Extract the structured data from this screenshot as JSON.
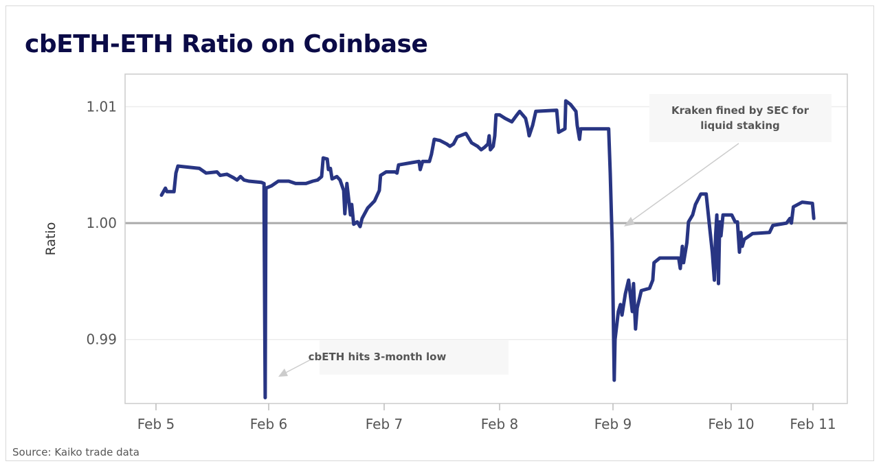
{
  "title": "cbETH-ETH Ratio on Coinbase",
  "source": "Source: Kaiko trade data",
  "chart_data": {
    "type": "line",
    "title": "cbETH-ETH Ratio on Coinbase",
    "xlabel": "",
    "ylabel": "Ratio",
    "ylim": [
      0.9845,
      1.0128
    ],
    "x_ticks": [
      "Feb 5",
      "Feb 6",
      "Feb 7",
      "Feb 8",
      "Feb 9",
      "Feb 10",
      "Feb 11"
    ],
    "y_ticks": [
      "0.99",
      "1.00",
      "1.01"
    ],
    "y_tick_values": [
      0.99,
      1.0,
      1.01
    ],
    "grid": true,
    "reference_line": 1.0,
    "legend": "none",
    "line_color": "#283583",
    "series": [
      {
        "points": [
          [
            "Feb 5 01:10",
            1.0024
          ],
          [
            "Feb 5 02:00",
            1.003
          ],
          [
            "Feb 5 02:20",
            1.0027
          ],
          [
            "Feb 5 03:50",
            1.0027
          ],
          [
            "Feb 5 04:15",
            1.0043
          ],
          [
            "Feb 5 04:40",
            1.0049
          ],
          [
            "Feb 5 09:15",
            1.0047
          ],
          [
            "Feb 5 10:40",
            1.0043
          ],
          [
            "Feb 5 13:00",
            1.0044
          ],
          [
            "Feb 5 13:40",
            1.0041
          ],
          [
            "Feb 5 15:05",
            1.0042
          ],
          [
            "Feb 5 16:30",
            1.0039
          ],
          [
            "Feb 5 17:15",
            1.0037
          ],
          [
            "Feb 5 18:00",
            1.004
          ],
          [
            "Feb 5 18:45",
            1.0037
          ],
          [
            "Feb 5 19:45",
            1.0036
          ],
          [
            "Feb 5 22:25",
            1.0035
          ],
          [
            "Feb 5 23:00",
            1.0034
          ],
          [
            "Feb 5 23:01",
            1.001
          ],
          [
            "Feb 5 23:15",
            0.985
          ],
          [
            "Feb 5 23:25",
            1.003
          ],
          [
            "Feb 6 00:35",
            1.0032
          ],
          [
            "Feb 6 02:00",
            1.0036
          ],
          [
            "Feb 6 04:10",
            1.0036
          ],
          [
            "Feb 6 05:35",
            1.0034
          ],
          [
            "Feb 6 07:45",
            1.0034
          ],
          [
            "Feb 6 09:10",
            1.0036
          ],
          [
            "Feb 6 10:10",
            1.0037
          ],
          [
            "Feb 6 11:00",
            1.004
          ],
          [
            "Feb 6 11:20",
            1.0056
          ],
          [
            "Feb 6 12:10",
            1.0055
          ],
          [
            "Feb 6 12:25",
            1.0046
          ],
          [
            "Feb 6 12:50",
            1.0047
          ],
          [
            "Feb 6 13:10",
            1.0038
          ],
          [
            "Feb 6 14:10",
            1.004
          ],
          [
            "Feb 6 14:50",
            1.0037
          ],
          [
            "Feb 6 15:35",
            1.0028
          ],
          [
            "Feb 6 15:50",
            1.0008
          ],
          [
            "Feb 6 16:15",
            1.0034
          ],
          [
            "Feb 6 17:00",
            1.0007
          ],
          [
            "Feb 6 17:15",
            1.0016
          ],
          [
            "Feb 6 17:40",
            0.9999
          ],
          [
            "Feb 6 18:25",
            1.0001
          ],
          [
            "Feb 6 19:00",
            0.9997
          ],
          [
            "Feb 6 19:25",
            1.0004
          ],
          [
            "Feb 6 20:35",
            1.0013
          ],
          [
            "Feb 6 22:00",
            1.0019
          ],
          [
            "Feb 6 23:00",
            1.0028
          ],
          [
            "Feb 6 23:15",
            1.0041
          ],
          [
            "Feb 7 00:25",
            1.0044
          ],
          [
            "Feb 7 02:15",
            1.0044
          ],
          [
            "Feb 7 02:40",
            1.0043
          ],
          [
            "Feb 7 03:00",
            1.005
          ],
          [
            "Feb 7 05:50",
            1.0052
          ],
          [
            "Feb 7 07:15",
            1.0053
          ],
          [
            "Feb 7 07:30",
            1.0046
          ],
          [
            "Feb 7 08:00",
            1.0053
          ],
          [
            "Feb 7 09:25",
            1.0053
          ],
          [
            "Feb 7 09:50",
            1.0059
          ],
          [
            "Feb 7 10:25",
            1.0072
          ],
          [
            "Feb 7 11:35",
            1.0071
          ],
          [
            "Feb 7 13:00",
            1.0068
          ],
          [
            "Feb 7 13:40",
            1.0066
          ],
          [
            "Feb 7 14:25",
            1.0068
          ],
          [
            "Feb 7 15:10",
            1.0074
          ],
          [
            "Feb 7 17:00",
            1.0077
          ],
          [
            "Feb 7 18:10",
            1.0069
          ],
          [
            "Feb 7 19:25",
            1.0066
          ],
          [
            "Feb 7 20:10",
            1.0063
          ],
          [
            "Feb 7 20:50",
            1.0065
          ],
          [
            "Feb 7 21:35",
            1.0068
          ],
          [
            "Feb 7 21:50",
            1.0075
          ],
          [
            "Feb 7 22:05",
            1.0063
          ],
          [
            "Feb 7 22:40",
            1.0066
          ],
          [
            "Feb 7 23:00",
            1.0075
          ],
          [
            "Feb 7 23:15",
            1.0093
          ],
          [
            "Feb 8 00:00",
            1.0093
          ],
          [
            "Feb 8 01:10",
            1.009
          ],
          [
            "Feb 8 02:35",
            1.0087
          ],
          [
            "Feb 8 03:40",
            1.0093
          ],
          [
            "Feb 8 04:15",
            1.0096
          ],
          [
            "Feb 8 05:30",
            1.009
          ],
          [
            "Feb 8 06:00",
            1.0081
          ],
          [
            "Feb 8 06:15",
            1.0075
          ],
          [
            "Feb 8 07:00",
            1.0084
          ],
          [
            "Feb 8 07:40",
            1.0096
          ],
          [
            "Feb 8 12:05",
            1.0097
          ],
          [
            "Feb 8 12:30",
            1.0078
          ],
          [
            "Feb 8 13:50",
            1.0081
          ],
          [
            "Feb 8 14:00",
            1.0105
          ],
          [
            "Feb 8 15:00",
            1.0102
          ],
          [
            "Feb 8 16:10",
            1.0096
          ],
          [
            "Feb 8 16:25",
            1.0084
          ],
          [
            "Feb 8 16:55",
            1.0072
          ],
          [
            "Feb 8 17:10",
            1.0081
          ],
          [
            "Feb 8 23:05",
            1.0081
          ],
          [
            "Feb 8 23:25",
            1.0043
          ],
          [
            "Feb 8 23:40",
            1.0007
          ],
          [
            "Feb 8 23:50",
            0.9983
          ],
          [
            "Feb 9 00:15",
            0.9865
          ],
          [
            "Feb 9 00:25",
            0.99
          ],
          [
            "Feb 9 01:05",
            0.9924
          ],
          [
            "Feb 9 01:30",
            0.993
          ],
          [
            "Feb 9 01:50",
            0.9921
          ],
          [
            "Feb 9 02:30",
            0.9939
          ],
          [
            "Feb 9 03:10",
            0.9951
          ],
          [
            "Feb 9 03:55",
            0.9924
          ],
          [
            "Feb 9 04:10",
            0.9948
          ],
          [
            "Feb 9 04:35",
            0.9909
          ],
          [
            "Feb 9 04:55",
            0.9927
          ],
          [
            "Feb 9 05:45",
            0.9942
          ],
          [
            "Feb 9 07:25",
            0.9944
          ],
          [
            "Feb 9 08:05",
            0.9951
          ],
          [
            "Feb 9 08:20",
            0.9966
          ],
          [
            "Feb 9 09:30",
            0.997
          ],
          [
            "Feb 9 13:20",
            0.997
          ],
          [
            "Feb 9 13:40",
            0.9961
          ],
          [
            "Feb 9 14:05",
            0.998
          ],
          [
            "Feb 9 14:20",
            0.9966
          ],
          [
            "Feb 9 15:00",
            0.9983
          ],
          [
            "Feb 9 15:20",
            1.0001
          ],
          [
            "Feb 9 16:10",
            1.0007
          ],
          [
            "Feb 9 16:45",
            1.0016
          ],
          [
            "Feb 9 17:50",
            1.0025
          ],
          [
            "Feb 9 18:55",
            1.0025
          ],
          [
            "Feb 9 19:40",
            0.9995
          ],
          [
            "Feb 9 20:10",
            0.9975
          ],
          [
            "Feb 9 20:35",
            0.9951
          ],
          [
            "Feb 9 20:50",
            0.9989
          ],
          [
            "Feb 9 21:05",
            1.0007
          ],
          [
            "Feb 9 21:25",
            0.9948
          ],
          [
            "Feb 9 21:40",
            1.0001
          ],
          [
            "Feb 9 21:55",
            0.9989
          ],
          [
            "Feb 9 22:20",
            1.0007
          ],
          [
            "Feb 10 00:10",
            1.0007
          ],
          [
            "Feb 10 01:10",
            1.0001
          ],
          [
            "Feb 10 01:50",
            1.0001
          ],
          [
            "Feb 10 02:25",
            0.9975
          ],
          [
            "Feb 10 02:50",
            0.9992
          ],
          [
            "Feb 10 03:15",
            0.998
          ],
          [
            "Feb 10 03:50",
            0.9986
          ],
          [
            "Feb 10 06:15",
            0.9991
          ],
          [
            "Feb 10 11:15",
            0.9992
          ],
          [
            "Feb 10 12:15",
            0.9998
          ],
          [
            "Feb 10 16:15",
            1.0
          ],
          [
            "Feb 10 17:15",
            1.0004
          ],
          [
            "Feb 10 17:40",
            1.0
          ],
          [
            "Feb 10 18:15",
            1.0014
          ],
          [
            "Feb 10 20:50",
            1.0018
          ],
          [
            "Feb 10 23:50",
            1.0017
          ],
          [
            "Feb 11 00:15",
            1.0004
          ]
        ]
      }
    ],
    "annotations": [
      {
        "text_lines": [
          "Kraken fined by SEC for",
          "liquid staking"
        ],
        "target": [
          "Feb 9 02:30",
          0.9992
        ]
      },
      {
        "text_lines": [
          "cbETH hits 3-month low"
        ],
        "target": [
          "Feb 6 02:00",
          0.9852
        ]
      }
    ]
  }
}
